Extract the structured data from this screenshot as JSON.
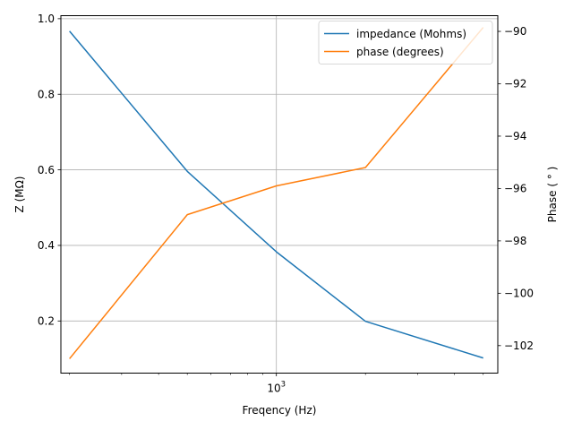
{
  "chart_data": {
    "type": "line",
    "title": "",
    "xlabel": "Freqency (Hz)",
    "ylabel": "Z (MΩ)",
    "y2label": "Phase ( ° )",
    "xscale": "log",
    "x": [
      200,
      500,
      1000,
      2000,
      5000
    ],
    "xlim": [
      187,
      5600
    ],
    "ylim": [
      0.062,
      1.008
    ],
    "y2lim": [
      -103.05,
      -89.4
    ],
    "xticks": [
      {
        "value": 1000,
        "base": "10",
        "exp": "3"
      }
    ],
    "yticks": [
      "0.2",
      "0.4",
      "0.6",
      "0.8",
      "1.0"
    ],
    "yticks_values": [
      0.2,
      0.4,
      0.6,
      0.8,
      1.0
    ],
    "y2ticks": [
      "−90",
      "−92",
      "−94",
      "−96",
      "−98",
      "−100",
      "−102"
    ],
    "y2ticks_values": [
      -90,
      -92,
      -94,
      -96,
      -98,
      -100,
      -102
    ],
    "grid": true,
    "legend_position": "top-right",
    "series": [
      {
        "name": "impedance (Mohms)",
        "axis": "left",
        "color": "#1f77b4",
        "values": [
          0.967,
          0.596,
          0.383,
          0.199,
          0.102
        ]
      },
      {
        "name": "phase (degrees)",
        "axis": "right",
        "color": "#ff7f0e",
        "values": [
          -102.5,
          -97.0,
          -95.9,
          -95.2,
          -89.85
        ]
      }
    ]
  }
}
